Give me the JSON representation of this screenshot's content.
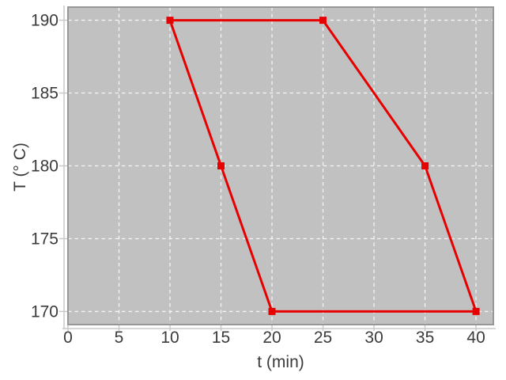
{
  "page": {
    "background": "#ffffff"
  },
  "chart_data": {
    "type": "line",
    "title": "",
    "xlabel": "t (min)",
    "ylabel": "T (° C)",
    "xlim": [
      0,
      41.7
    ],
    "ylim": [
      169.1,
      190.9
    ],
    "xticks": [
      0,
      5,
      10,
      15,
      20,
      25,
      30,
      35,
      40
    ],
    "yticks": [
      170,
      175,
      180,
      185,
      190
    ],
    "grid": true,
    "grid_style": "dashed",
    "legend": "none",
    "colors": {
      "plot_bg": "#c1c1c1",
      "frame": "#979797",
      "grid": "#f5f5f5",
      "spine": "#c9c9c9",
      "tick": "#c9c9c9",
      "text": "#3b3b3b",
      "series_red": "#e60000"
    },
    "series": [
      {
        "name": "temperature-cycle",
        "color": "#e60000",
        "marker": "square",
        "marker_size": 9,
        "line_width": 3,
        "closed": true,
        "points": [
          [
            10,
            190
          ],
          [
            25,
            190
          ],
          [
            35,
            180
          ],
          [
            40,
            170
          ],
          [
            20,
            170
          ],
          [
            15,
            180
          ]
        ]
      }
    ]
  }
}
